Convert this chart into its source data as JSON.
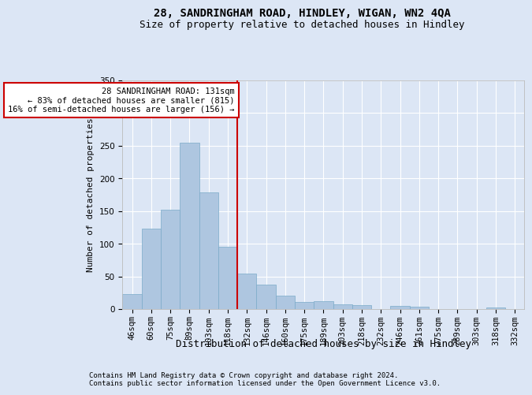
{
  "title1": "28, SANDRINGHAM ROAD, HINDLEY, WIGAN, WN2 4QA",
  "title2": "Size of property relative to detached houses in Hindley",
  "xlabel": "Distribution of detached houses by size in Hindley",
  "ylabel": "Number of detached properties",
  "footnote1": "Contains HM Land Registry data © Crown copyright and database right 2024.",
  "footnote2": "Contains public sector information licensed under the Open Government Licence v3.0.",
  "bar_labels": [
    "46sqm",
    "60sqm",
    "75sqm",
    "89sqm",
    "103sqm",
    "118sqm",
    "132sqm",
    "146sqm",
    "160sqm",
    "175sqm",
    "189sqm",
    "203sqm",
    "218sqm",
    "232sqm",
    "246sqm",
    "261sqm",
    "275sqm",
    "289sqm",
    "303sqm",
    "318sqm",
    "332sqm"
  ],
  "bar_values": [
    23,
    123,
    152,
    255,
    179,
    95,
    54,
    38,
    20,
    11,
    12,
    7,
    6,
    0,
    5,
    4,
    0,
    0,
    0,
    2,
    0
  ],
  "bar_color": "#aec6e0",
  "bar_edge_color": "#7aaac8",
  "property_line_idx": 6,
  "property_line_label": "28 SANDRINGHAM ROAD: 131sqm",
  "annotation_line1": "← 83% of detached houses are smaller (815)",
  "annotation_line2": "16% of semi-detached houses are larger (156) →",
  "annotation_box_color": "#ffffff",
  "annotation_box_edge": "#cc0000",
  "vline_color": "#cc0000",
  "bg_color": "#dce6f5",
  "plot_bg_color": "#dce6f5",
  "ylim": [
    0,
    350
  ],
  "yticks": [
    0,
    50,
    100,
    150,
    200,
    250,
    300,
    350
  ],
  "title1_fontsize": 10,
  "title2_fontsize": 9,
  "xlabel_fontsize": 9,
  "ylabel_fontsize": 8,
  "tick_fontsize": 7.5,
  "annot_fontsize": 7.5,
  "footnote_fontsize": 6.5
}
